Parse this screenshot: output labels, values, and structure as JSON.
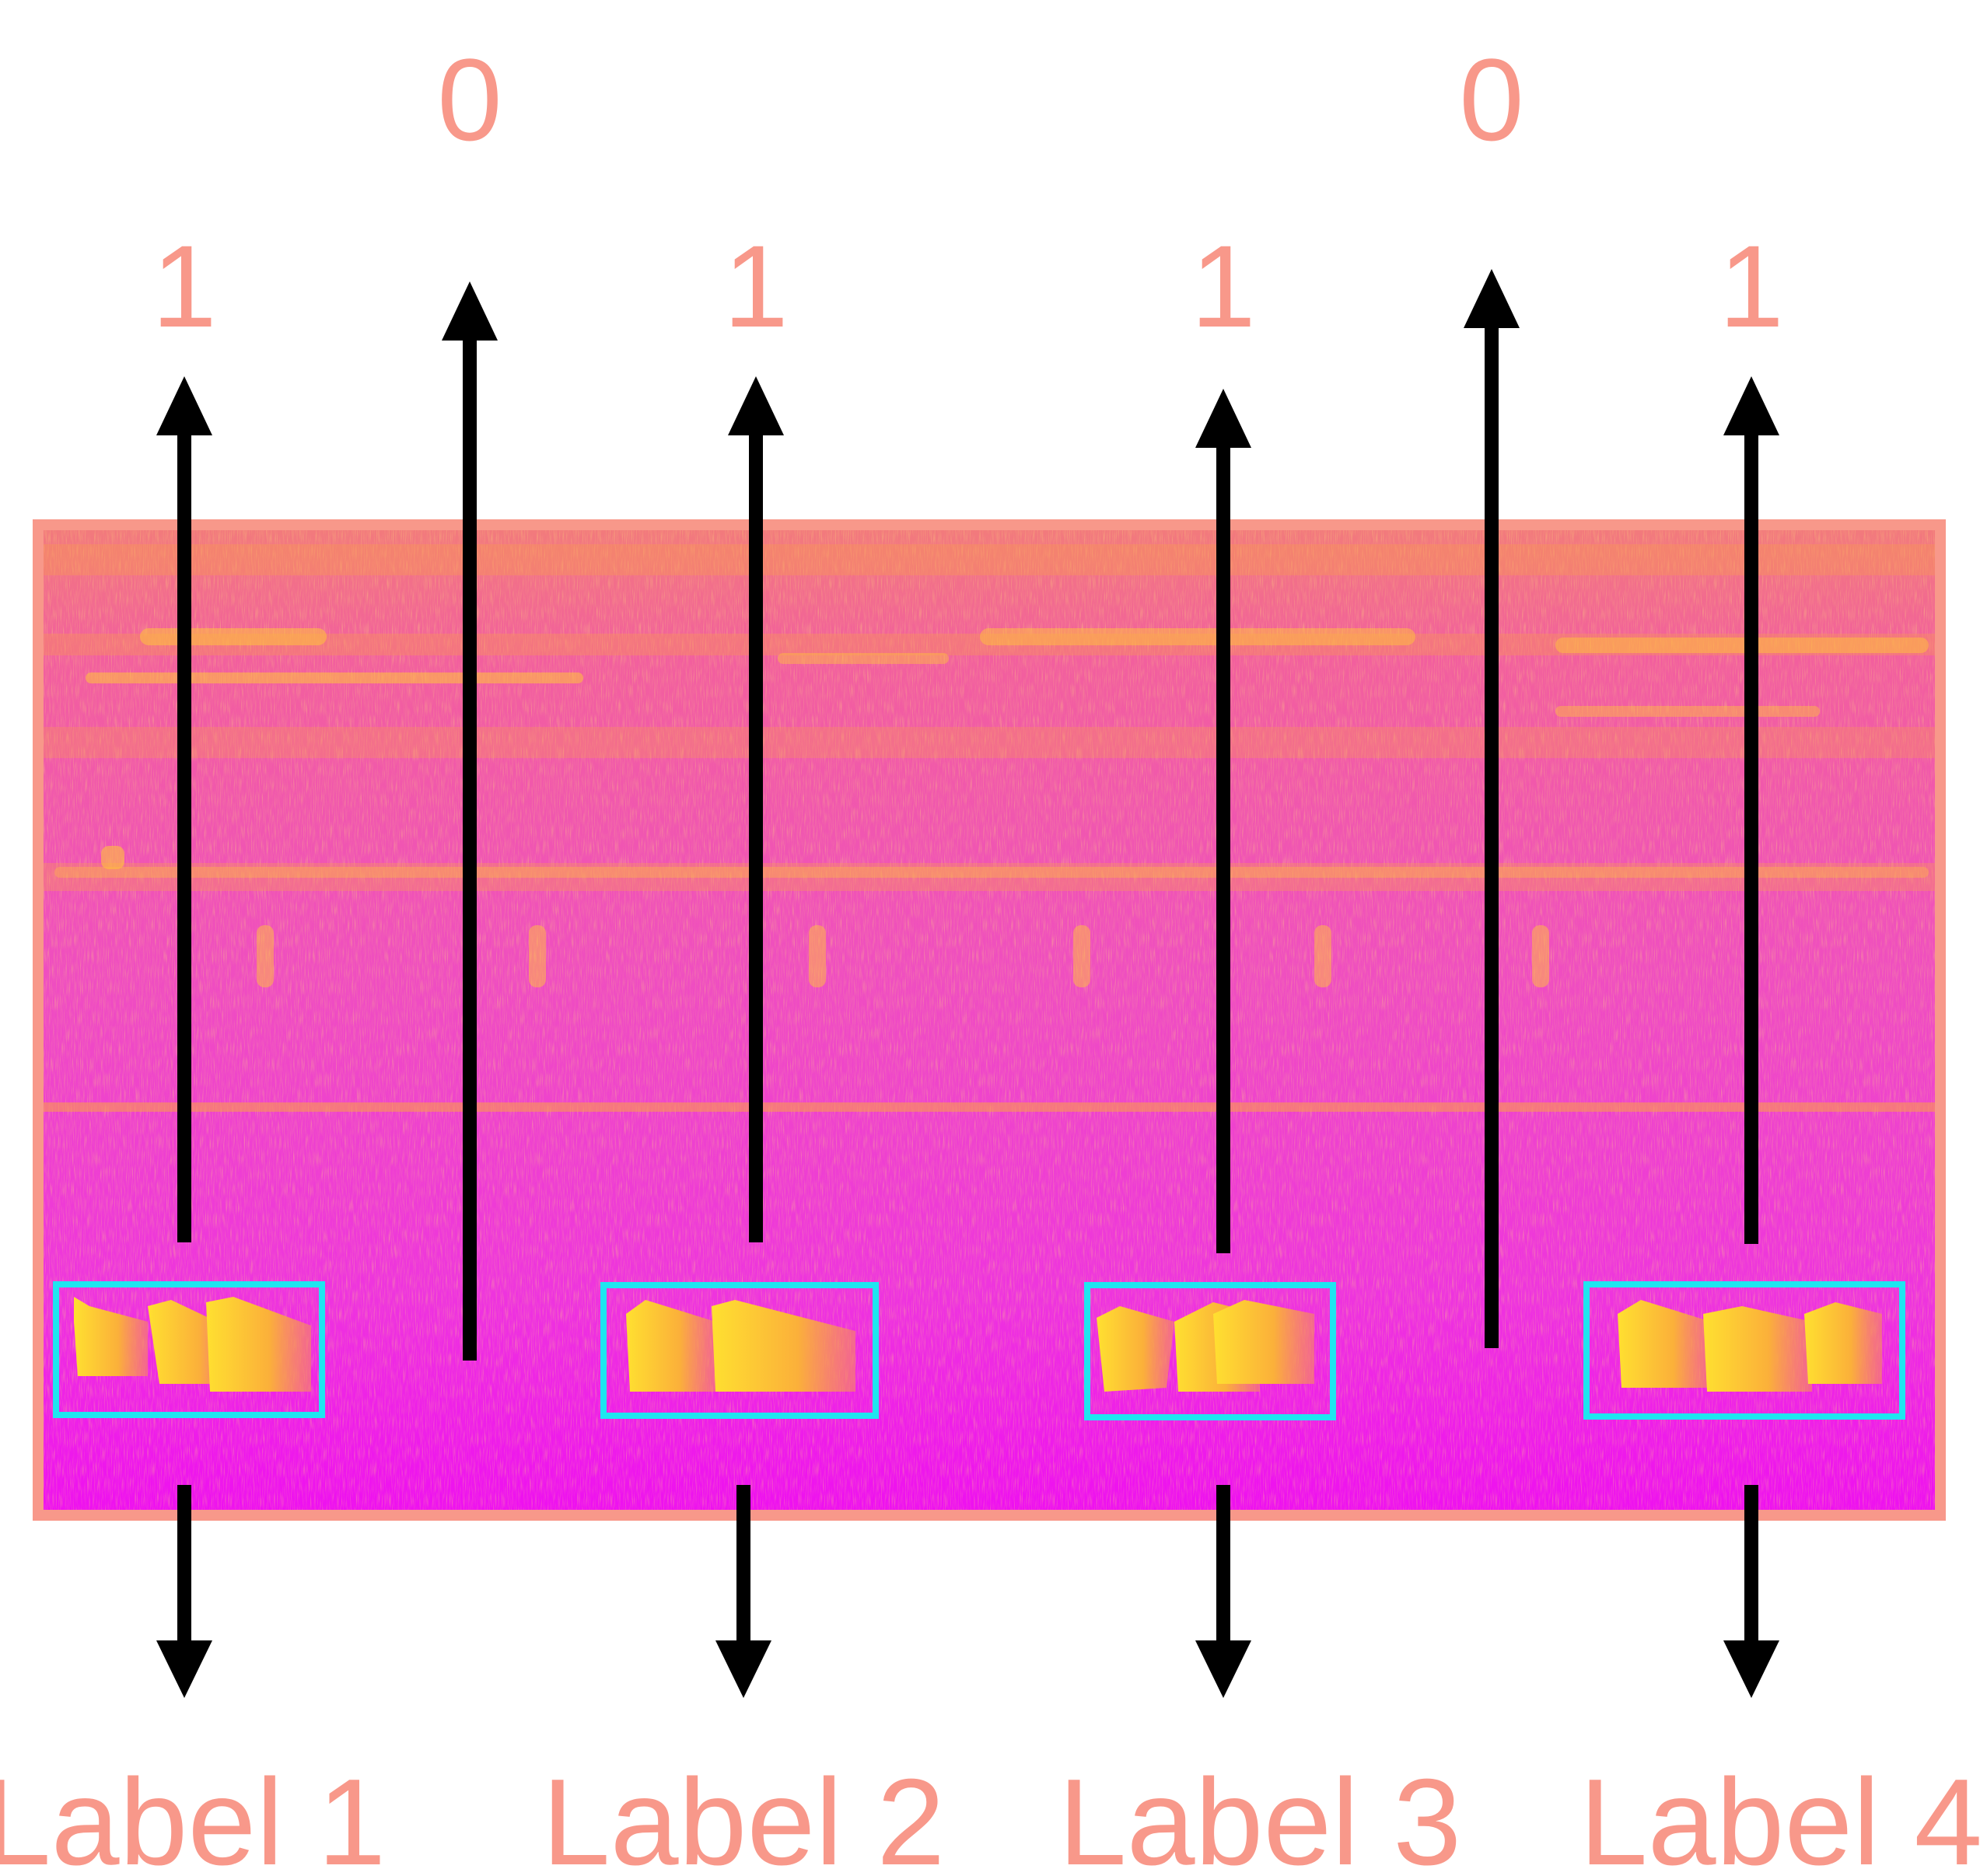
{
  "colors": {
    "annotation": "#F8988A",
    "detection_box": "#1EE6F0",
    "arrow": "#000000",
    "spectrogram_base": "#EE2EE6",
    "spectrogram_band": "#FA9850",
    "spectrogram_hot": "#FFE030",
    "background": "#FFFFFF"
  },
  "top_row": [
    "0",
    "0"
  ],
  "binary_sequence": [
    "1",
    "0",
    "1",
    "1",
    "0",
    "1"
  ],
  "labels": [
    "Label 1",
    "Label 2",
    "Label 3",
    "Label 4"
  ]
}
